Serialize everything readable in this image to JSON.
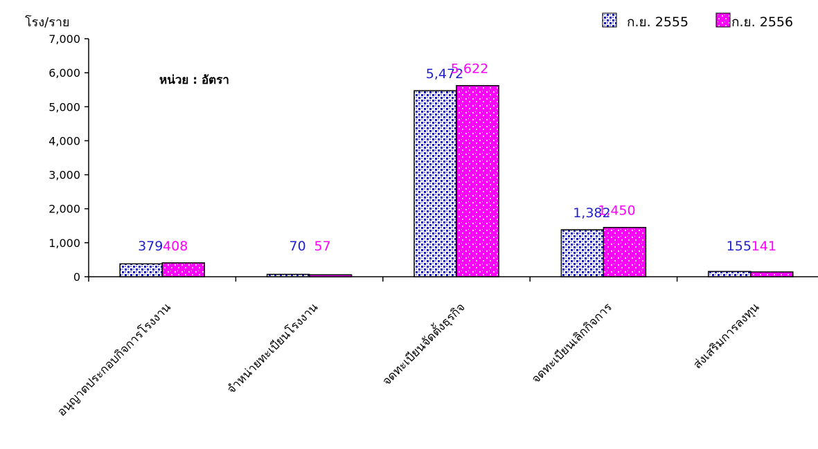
{
  "chart_data": {
    "type": "bar",
    "ylabel": "โรง/ราย",
    "note": "หน่วย : อัตรา",
    "ylim": [
      0,
      7000
    ],
    "yticks": [
      "0",
      "1,000",
      "2,000",
      "3,000",
      "4,000",
      "5,000",
      "6,000",
      "7,000"
    ],
    "categories": [
      "อนุญาตประกอบกิจการโรงงาน",
      "จำหน่ายทะเบียนโรงงาน",
      "จดทะเบียนจัดตั้งธุรกิจ",
      "จดทะเบียนเลิกกิจการ",
      "ส่งเสริมการลงทุน"
    ],
    "series": [
      {
        "name": "ก.ย. 2555",
        "values": [
          379,
          70,
          5472,
          1382,
          155
        ],
        "labels": [
          "379",
          "70",
          "5,472",
          "1,382",
          "155"
        ],
        "color": "#1f1fd0"
      },
      {
        "name": "ก.ย. 2556",
        "values": [
          408,
          57,
          5622,
          1450,
          141
        ],
        "labels": [
          "408",
          "57",
          "5,622",
          "1,450",
          "141"
        ],
        "color": "#ff00ff"
      }
    ],
    "legend": "top-right",
    "grid": false
  }
}
